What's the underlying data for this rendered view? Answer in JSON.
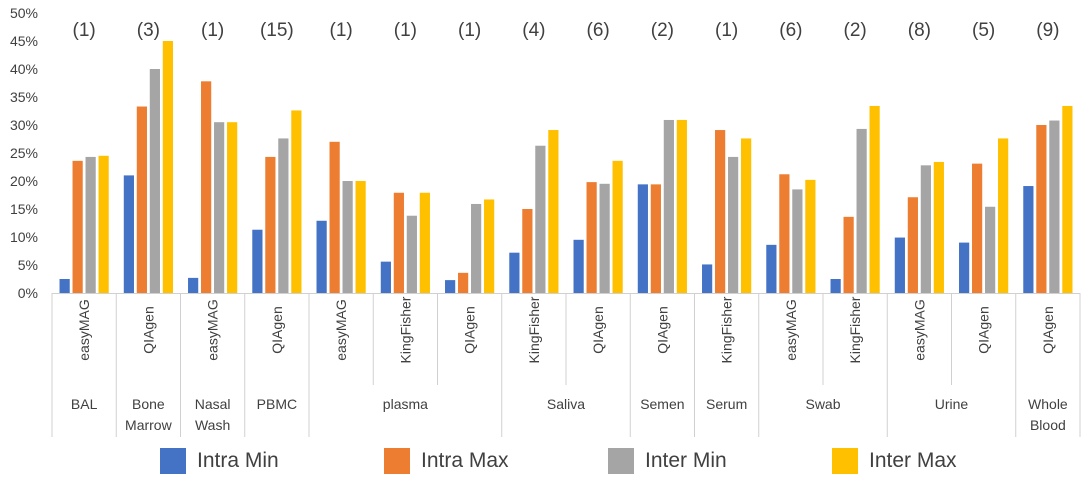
{
  "chart_data": {
    "type": "bar",
    "title": "",
    "xlabel": "",
    "ylabel": "",
    "ylim": [
      0,
      50
    ],
    "y_ticks": [
      "0%",
      "5%",
      "10%",
      "15%",
      "20%",
      "25%",
      "30%",
      "35%",
      "40%",
      "45%",
      "50%"
    ],
    "grid": false,
    "legend_position": "bottom",
    "groups": [
      {
        "sample": "BAL",
        "methods": [
          "easyMAG"
        ]
      },
      {
        "sample": "Bone Marrow",
        "methods": [
          "QIAgen"
        ]
      },
      {
        "sample": "Nasal Wash",
        "methods": [
          "easyMAG"
        ]
      },
      {
        "sample": "PBMC",
        "methods": [
          "QIAgen"
        ]
      },
      {
        "sample": "plasma",
        "methods": [
          "easyMAG",
          "KingFisher",
          "QIAgen"
        ]
      },
      {
        "sample": "Saliva",
        "methods": [
          "KingFisher",
          "QIAgen"
        ]
      },
      {
        "sample": "Semen",
        "methods": [
          "QIAgen"
        ]
      },
      {
        "sample": "Serum",
        "methods": [
          "KingFisher"
        ]
      },
      {
        "sample": "Swab",
        "methods": [
          "easyMAG",
          "KingFisher"
        ]
      },
      {
        "sample": "Urine",
        "methods": [
          "easyMAG",
          "QIAgen"
        ]
      },
      {
        "sample": "Whole Blood",
        "methods": [
          "QIAgen"
        ]
      }
    ],
    "counts": [
      "(1)",
      "(3)",
      "(1)",
      "(15)",
      "(1)",
      "(1)",
      "(1)",
      "(4)",
      "(6)",
      "(2)",
      "(1)",
      "(6)",
      "(2)",
      "(8)",
      "(5)",
      "(9)"
    ],
    "series": [
      {
        "name": "Intra Min",
        "color": "#4472C4",
        "values": [
          2.5,
          21.0,
          2.7,
          11.3,
          12.9,
          5.6,
          2.3,
          7.2,
          9.5,
          19.4,
          5.1,
          8.6,
          2.5,
          9.9,
          9.0,
          19.1
        ]
      },
      {
        "name": "Intra Max",
        "color": "#ED7D31",
        "values": [
          23.6,
          33.3,
          37.8,
          24.3,
          27.0,
          17.9,
          3.6,
          15.0,
          19.8,
          19.4,
          29.1,
          21.2,
          13.6,
          17.1,
          23.1,
          30.0
        ]
      },
      {
        "name": "Inter Min",
        "color": "#A5A5A5",
        "values": [
          24.3,
          40.0,
          30.5,
          27.6,
          20.0,
          13.8,
          15.9,
          26.3,
          19.5,
          30.9,
          24.3,
          18.5,
          29.3,
          22.8,
          15.4,
          30.8
        ]
      },
      {
        "name": "Inter Max",
        "color": "#FFC000",
        "values": [
          24.5,
          45.0,
          30.5,
          32.6,
          20.0,
          17.9,
          16.7,
          29.1,
          23.6,
          30.9,
          27.6,
          20.2,
          33.4,
          23.4,
          27.6,
          33.4
        ]
      }
    ]
  }
}
